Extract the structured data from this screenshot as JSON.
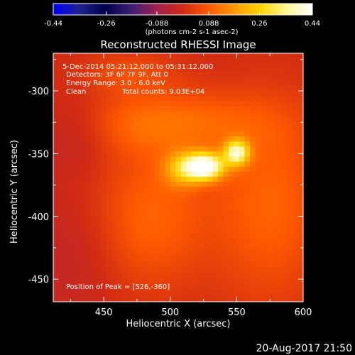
{
  "colors": {
    "background": "#000000",
    "foreground": "#ffffff",
    "colormap": [
      "#0000ff",
      "#202090",
      "#00004a",
      "#3c1e74",
      "#a0204f",
      "#d02a14",
      "#ff5a00",
      "#ff9a00",
      "#ffd600",
      "#fff69a",
      "#ffffff"
    ]
  },
  "colorbar": {
    "tick_labels": [
      "-0.44",
      "-0.26",
      "-0.088",
      "0.088",
      "0.26",
      "0.44"
    ],
    "unit_label": "(photons cm-2 s-1 asec-2)"
  },
  "footer_timestamp": "20-Aug-2017 21:50",
  "chart_data": {
    "type": "heatmap",
    "title": "Reconstructed RHESSI Image",
    "xlabel": "Heliocentric X (arcsec)",
    "ylabel": "Heliocentric Y (arcsec)",
    "xlim": [
      412,
      600
    ],
    "ylim": [
      -468,
      -270
    ],
    "x_tick_labels": [
      "450",
      "500",
      "550",
      "600"
    ],
    "y_tick_labels": [
      "-300",
      "-350",
      "-400",
      "-450"
    ],
    "x_ticks": [
      450,
      500,
      550,
      600
    ],
    "y_ticks": [
      -300,
      -350,
      -400,
      -450
    ],
    "color_scale": [
      -0.44,
      0.44
    ],
    "annotations": {
      "time_range": "5-Dec-2014 05:21:12.000 to 05:31:12.000",
      "detectors": "Detectors: 3F 6F 7F 9F, Att 0",
      "energy": "Energy Range: 3.0 - 6.0 keV",
      "method": "Clean",
      "counts": "Total counts: 9.03E+04",
      "peak": "Position of Peak = [526,-360]"
    },
    "peak_position": [
      526,
      -360
    ],
    "sources": [
      {
        "x": 526,
        "y": -360,
        "sx": 10,
        "sy": 7.5,
        "amp": 0.44
      },
      {
        "x": 550,
        "y": -349,
        "sx": 6.5,
        "sy": 7,
        "amp": 0.33
      },
      {
        "x": 509,
        "y": -362,
        "sx": 10,
        "sy": 10,
        "amp": 0.17
      },
      {
        "x": 495,
        "y": -325,
        "sx": 55,
        "sy": 18,
        "amp": 0.11
      },
      {
        "x": 485,
        "y": -400,
        "sx": 30,
        "sy": 40,
        "amp": 0.1
      },
      {
        "x": 575,
        "y": -390,
        "sx": 30,
        "sy": 55,
        "amp": 0.1
      },
      {
        "x": 430,
        "y": -330,
        "sx": 20,
        "sy": 20,
        "amp": -0.06
      },
      {
        "x": 430,
        "y": -430,
        "sx": 25,
        "sy": 40,
        "amp": -0.03
      },
      {
        "x": 470,
        "y": -285,
        "sx": 25,
        "sy": 12,
        "amp": 0.06
      }
    ]
  }
}
